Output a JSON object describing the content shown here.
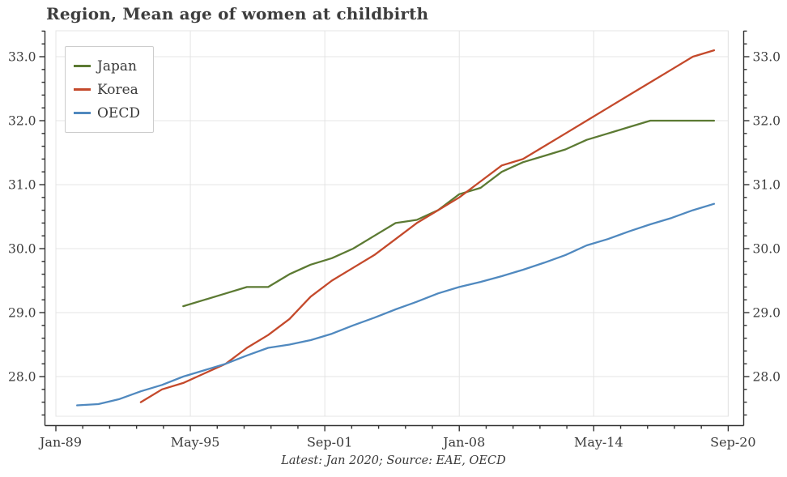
{
  "chart_data": {
    "type": "line",
    "title": "Region, Mean age of women at childbirth",
    "caption": "Latest: Jan 2020; Source: EAE, OECD",
    "legend_position": "upper left",
    "grid": true,
    "x_axis": {
      "tick_labels": [
        "Jan-89",
        "May-95",
        "Sep-01",
        "Jan-08",
        "May-14",
        "Sep-20"
      ],
      "tick_years": [
        1989.0,
        1995.3333,
        2001.6667,
        2008.0,
        2014.3333,
        2020.6667
      ],
      "range_years": [
        1989.0,
        2020.6667
      ]
    },
    "y_axis": {
      "tick_labels": [
        "28.0",
        "29.0",
        "30.0",
        "31.0",
        "32.0",
        "33.0"
      ],
      "tick_values": [
        28.0,
        29.0,
        30.0,
        31.0,
        32.0,
        33.0
      ],
      "range": [
        27.38,
        33.4
      ],
      "sides": [
        "left",
        "right"
      ]
    },
    "series": [
      {
        "name": "Japan",
        "color": "#5c7a33",
        "start_year": 1995,
        "values": [
          29.1,
          29.2,
          29.3,
          29.4,
          29.4,
          29.6,
          29.75,
          29.85,
          30.0,
          30.2,
          30.4,
          30.45,
          30.6,
          30.85,
          30.95,
          31.2,
          31.35,
          31.45,
          31.55,
          31.7,
          31.8,
          31.9,
          32.0,
          32.0,
          32.0,
          32.0
        ]
      },
      {
        "name": "Korea",
        "color": "#c4492b",
        "start_year": 1993,
        "values": [
          27.6,
          27.8,
          27.9,
          28.05,
          28.2,
          28.45,
          28.65,
          28.9,
          29.25,
          29.5,
          29.7,
          29.9,
          30.15,
          30.4,
          30.6,
          30.8,
          31.05,
          31.3,
          31.4,
          31.6,
          31.8,
          32.0,
          32.2,
          32.4,
          32.6,
          32.8,
          33.0,
          33.1
        ]
      },
      {
        "name": "OECD",
        "color": "#5089bf",
        "start_year": 1990,
        "values": [
          27.55,
          27.57,
          27.65,
          27.77,
          27.87,
          28.0,
          28.1,
          28.2,
          28.33,
          28.45,
          28.5,
          28.57,
          28.67,
          28.8,
          28.92,
          29.05,
          29.17,
          29.3,
          29.4,
          29.48,
          29.57,
          29.67,
          29.78,
          29.9,
          30.05,
          30.15,
          30.27,
          30.38,
          30.48,
          30.6,
          30.7
        ]
      }
    ],
    "style_colors": {
      "grid": "#e4e4e4",
      "spine": "#333333",
      "tick_text": "#3d3d3d",
      "background": "#ffffff"
    }
  }
}
